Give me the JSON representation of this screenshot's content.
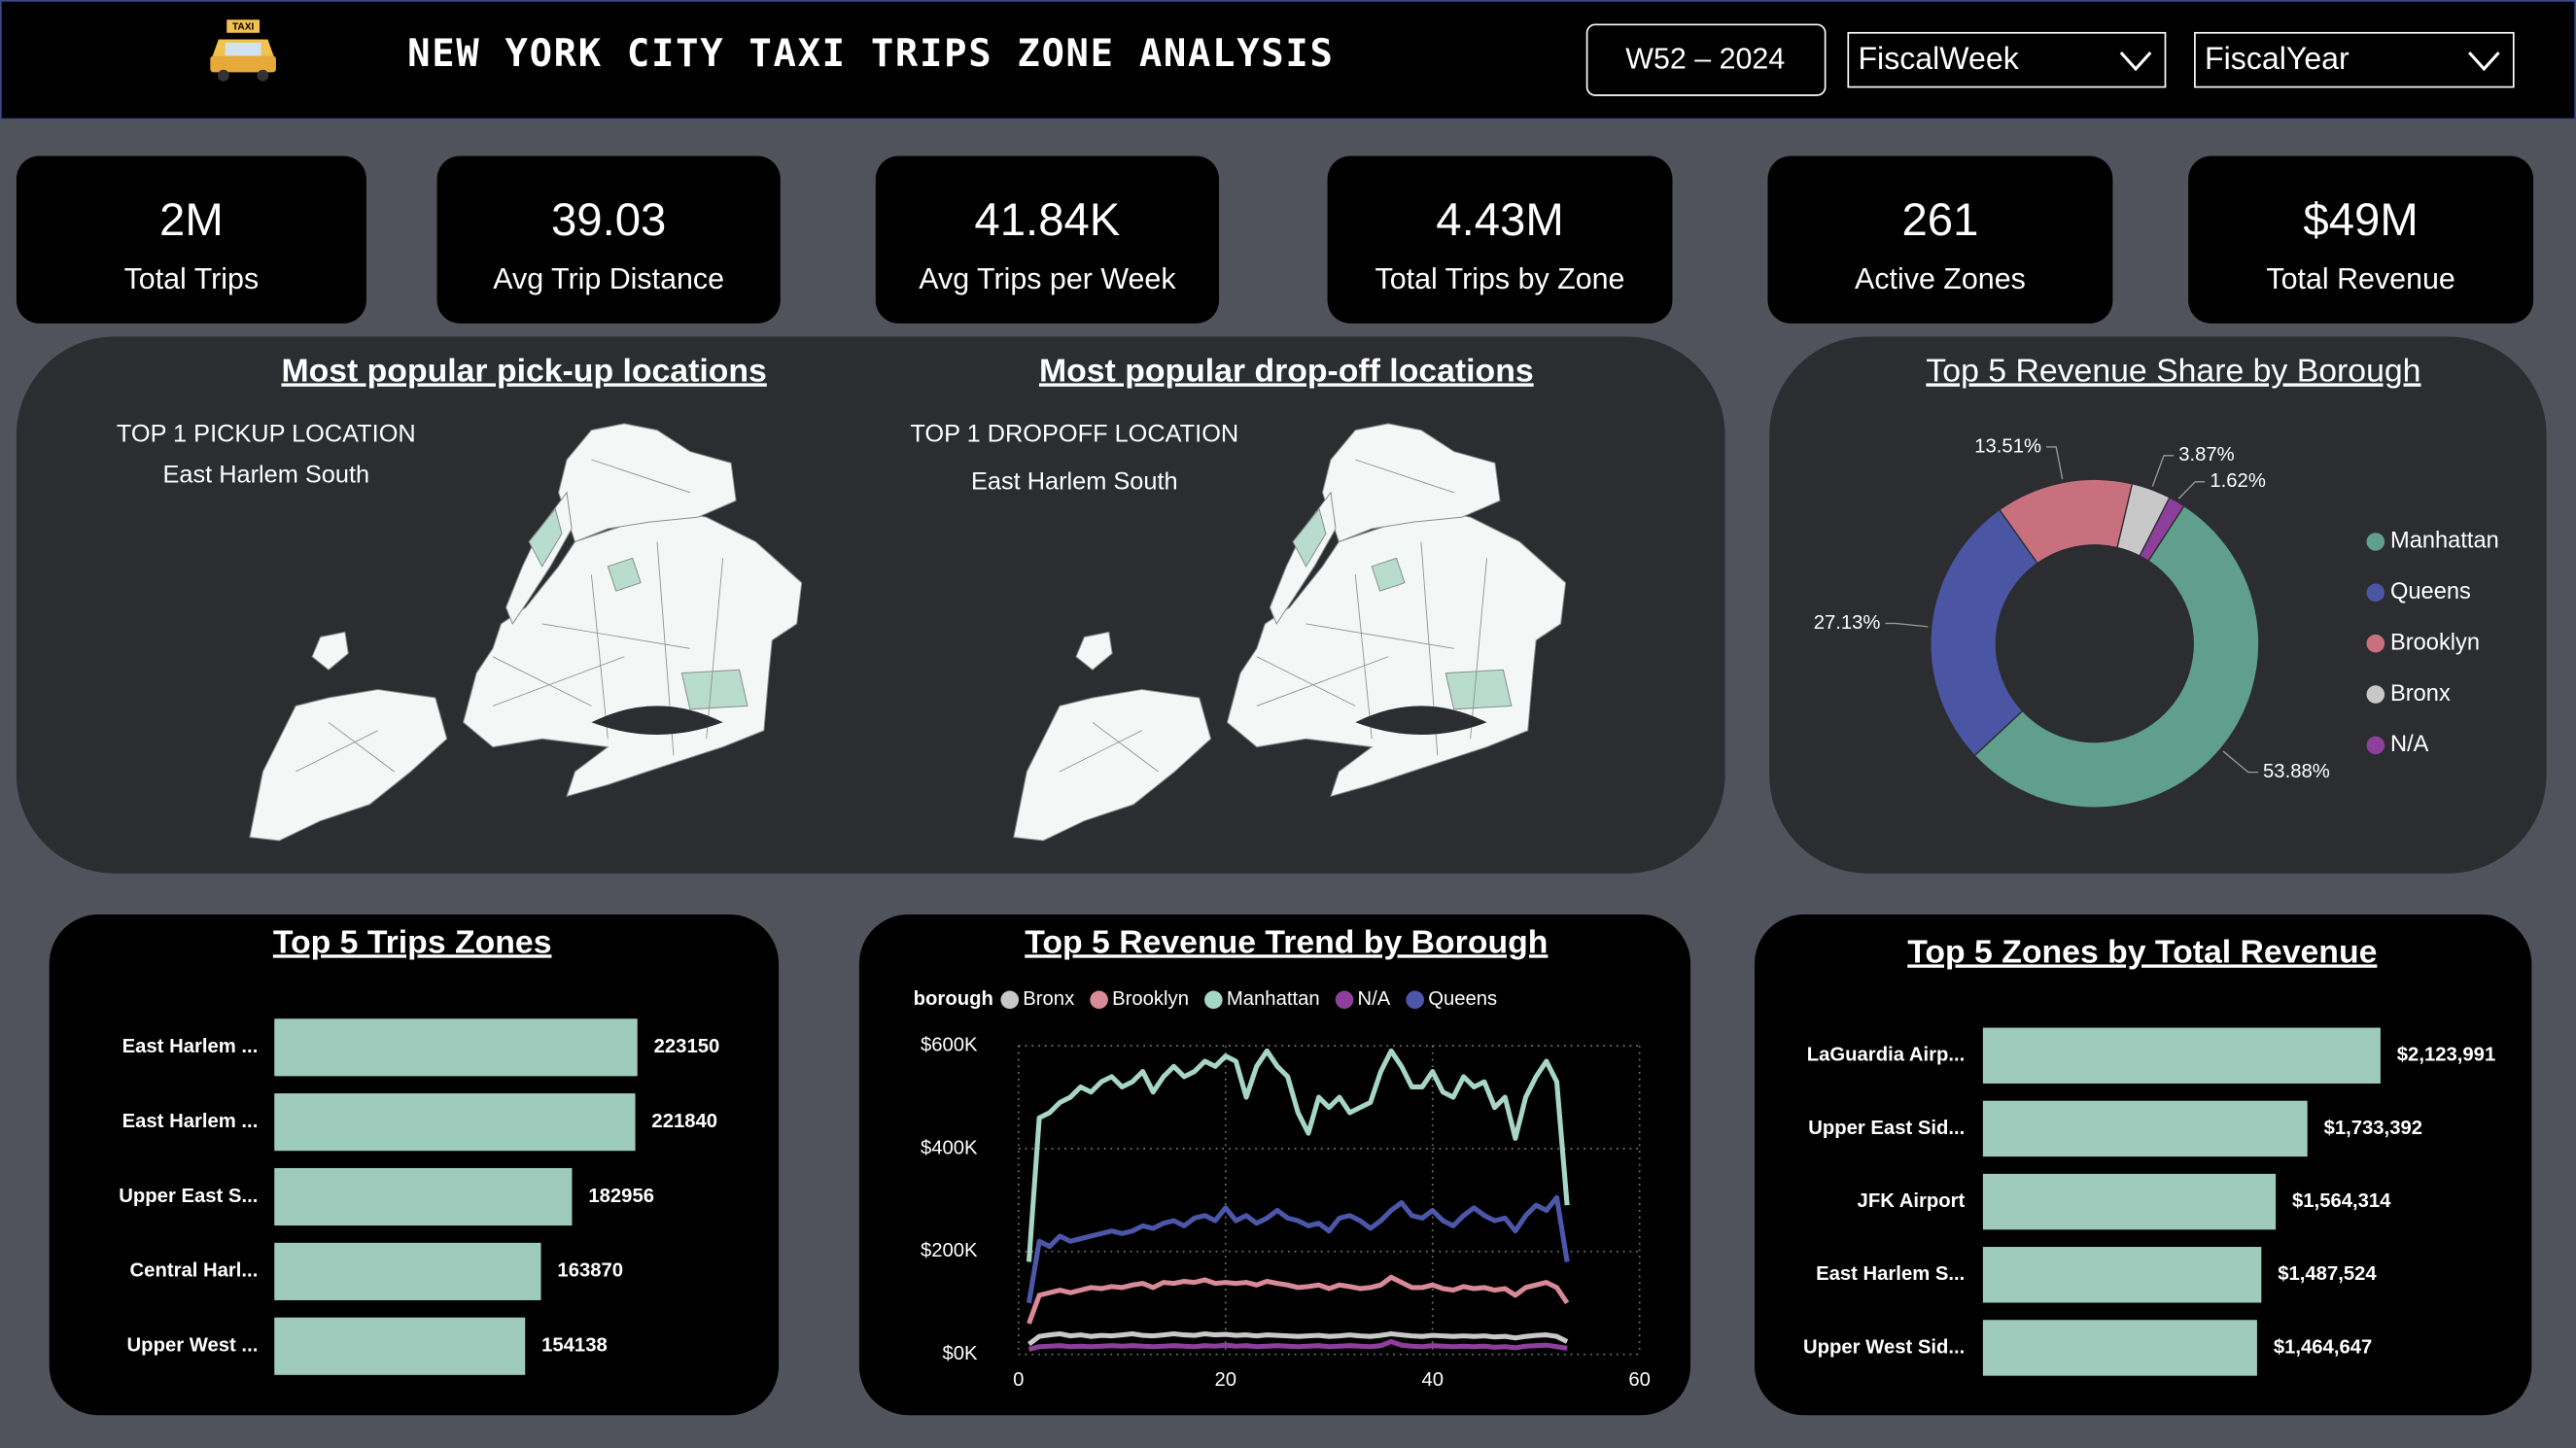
{
  "header": {
    "icon_text": "TAXI",
    "title": "NEW YORK CITY TAXI TRIPS ZONE ANALYSIS",
    "period": "W52 – 2024",
    "filters": [
      "FiscalWeek",
      "FiscalYear"
    ]
  },
  "kpis": [
    {
      "value": "2M",
      "label": "Total Trips"
    },
    {
      "value": "39.03",
      "label": "Avg Trip Distance"
    },
    {
      "value": "41.84K",
      "label": "Avg Trips per Week"
    },
    {
      "value": "4.43M",
      "label": "Total Trips by Zone"
    },
    {
      "value": "261",
      "label": "Active Zones"
    },
    {
      "value": "$49M",
      "label": "Total Revenue"
    }
  ],
  "maps": [
    {
      "title": "Most popular pick-up locations",
      "caption": "TOP 1 PICKUP LOCATION",
      "location": "East Harlem South"
    },
    {
      "title": "Most popular drop-off locations",
      "caption": "TOP 1 DROPOFF LOCATION",
      "location": "East Harlem South"
    }
  ],
  "chart_data": [
    {
      "type": "donut",
      "title": "Top 5 Revenue Share by Borough",
      "categories": [
        "Manhattan",
        "Queens",
        "Brooklyn",
        "Bronx",
        "N/A"
      ],
      "values": [
        53.88,
        27.13,
        13.51,
        3.87,
        1.62
      ],
      "value_labels": [
        "53.88%",
        "27.13%",
        "13.51%",
        "3.87%",
        "1.62%"
      ],
      "colors": [
        "#5f9f8b",
        "#4a55a3",
        "#c9707e",
        "#c8c8c8",
        "#8d3f9c"
      ]
    },
    {
      "type": "barh",
      "title": "Top 5 Trips Zones",
      "categories": [
        "East Harlem ...",
        "East Harlem ...",
        "Upper East S...",
        "Central Harl...",
        "Upper West ..."
      ],
      "values": [
        223150,
        221840,
        182956,
        163870,
        154138
      ],
      "color": "#9fcbbd"
    },
    {
      "type": "line",
      "title": "Top 5 Revenue Trend by Borough",
      "legend_title": "borough",
      "x": [
        1,
        2,
        3,
        4,
        5,
        6,
        7,
        8,
        9,
        10,
        11,
        12,
        13,
        14,
        15,
        16,
        17,
        18,
        19,
        20,
        21,
        22,
        23,
        24,
        25,
        26,
        27,
        28,
        29,
        30,
        31,
        32,
        33,
        34,
        35,
        36,
        37,
        38,
        39,
        40,
        41,
        42,
        43,
        44,
        45,
        46,
        47,
        48,
        49,
        50,
        51,
        52,
        53
      ],
      "xlim": [
        0,
        60
      ],
      "xticks": [
        0,
        20,
        40,
        60
      ],
      "ylim": [
        0,
        600
      ],
      "yticks": [
        {
          "value": 0,
          "label": "$0K"
        },
        {
          "value": 200,
          "label": "$200K"
        },
        {
          "value": 400,
          "label": "$400K"
        },
        {
          "value": 600,
          "label": "$600K"
        }
      ],
      "grid": true,
      "series": [
        {
          "name": "Bronx",
          "color": "#c8c8c8",
          "values": [
            20,
            35,
            38,
            40,
            36,
            38,
            35,
            37,
            36,
            38,
            40,
            37,
            36,
            38,
            40,
            38,
            37,
            40,
            38,
            39,
            37,
            38,
            36,
            38,
            37,
            36,
            35,
            36,
            37,
            35,
            36,
            38,
            36,
            35,
            37,
            40,
            38,
            36,
            35,
            37,
            36,
            35,
            36,
            35,
            36,
            34,
            35,
            32,
            35,
            37,
            38,
            35,
            25
          ]
        },
        {
          "name": "Brooklyn",
          "color": "#d98a97",
          "values": [
            60,
            115,
            120,
            125,
            120,
            125,
            130,
            128,
            132,
            130,
            135,
            138,
            130,
            140,
            138,
            142,
            140,
            145,
            138,
            140,
            138,
            140,
            135,
            142,
            138,
            135,
            130,
            132,
            135,
            128,
            135,
            132,
            128,
            130,
            135,
            150,
            140,
            130,
            130,
            135,
            128,
            125,
            132,
            128,
            130,
            125,
            128,
            115,
            130,
            135,
            140,
            130,
            100
          ]
        },
        {
          "name": "Manhattan",
          "color": "#a6d6c6",
          "values": [
            180,
            460,
            470,
            490,
            500,
            520,
            510,
            530,
            540,
            520,
            530,
            550,
            510,
            540,
            560,
            540,
            550,
            570,
            560,
            580,
            570,
            500,
            560,
            590,
            560,
            540,
            470,
            430,
            500,
            480,
            500,
            470,
            480,
            490,
            550,
            590,
            560,
            520,
            520,
            550,
            510,
            500,
            540,
            520,
            530,
            480,
            500,
            420,
            500,
            540,
            570,
            530,
            290
          ]
        },
        {
          "name": "N/A",
          "color": "#8d3f9c",
          "values": [
            10,
            15,
            16,
            17,
            15,
            16,
            15,
            16,
            17,
            16,
            17,
            16,
            15,
            16,
            17,
            16,
            15,
            17,
            16,
            18,
            16,
            17,
            15,
            16,
            17,
            16,
            15,
            16,
            17,
            15,
            16,
            17,
            16,
            15,
            17,
            25,
            18,
            16,
            15,
            17,
            16,
            15,
            16,
            15,
            16,
            14,
            15,
            13,
            16,
            17,
            18,
            15,
            12
          ]
        },
        {
          "name": "Queens",
          "color": "#4d57aa",
          "values": [
            100,
            220,
            210,
            230,
            220,
            225,
            230,
            235,
            240,
            235,
            240,
            250,
            245,
            255,
            260,
            250,
            265,
            270,
            260,
            285,
            260,
            270,
            255,
            265,
            280,
            265,
            260,
            250,
            255,
            240,
            265,
            270,
            260,
            245,
            260,
            280,
            295,
            270,
            265,
            280,
            260,
            250,
            270,
            285,
            270,
            260,
            265,
            240,
            270,
            290,
            280,
            305,
            180
          ]
        }
      ]
    },
    {
      "type": "barh",
      "title": "Top 5 Zones by Total Revenue",
      "categories": [
        "LaGuardia Airp...",
        "Upper East Sid...",
        "JFK Airport",
        "East Harlem S...",
        "Upper West Sid..."
      ],
      "values": [
        2123991,
        1733392,
        1564314,
        1487524,
        1464647
      ],
      "value_labels": [
        "$2,123,991",
        "$1,733,392",
        "$1,564,314",
        "$1,487,524",
        "$1,464,647"
      ],
      "color": "#9fcbbd"
    }
  ]
}
